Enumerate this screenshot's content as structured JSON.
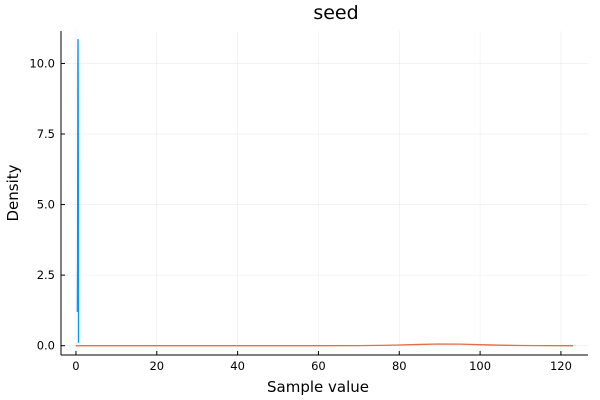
{
  "chart_data": {
    "type": "line",
    "title": "seed",
    "xlabel": "Sample value",
    "ylabel": "Density",
    "xlim": [
      -3.7,
      126.7
    ],
    "ylim": [
      -0.33,
      11.15
    ],
    "xticks": [
      0,
      20,
      40,
      60,
      80,
      100,
      120
    ],
    "xtick_labels": [
      "0",
      "20",
      "40",
      "60",
      "80",
      "100",
      "120"
    ],
    "yticks": [
      0.0,
      2.5,
      5.0,
      7.5,
      10.0
    ],
    "ytick_labels": [
      "0.0",
      "2.5",
      "5.0",
      "7.5",
      "10.0"
    ],
    "grid": true,
    "legend": "none",
    "series": [
      {
        "color": "#009AFA",
        "x": [
          0.35,
          0.4,
          0.42,
          0.45,
          0.47,
          0.5,
          0.52,
          0.55,
          0.58,
          0.6,
          0.62,
          0.63
        ],
        "y": [
          1.2,
          3.0,
          5.5,
          8.0,
          9.8,
          10.85,
          10.8,
          9.5,
          7.0,
          4.0,
          1.5,
          0.1
        ]
      },
      {
        "color": "#E26F46",
        "x": [
          0,
          20,
          40,
          60,
          70,
          75,
          80,
          85,
          90,
          95,
          100,
          105,
          110,
          115,
          120,
          123
        ],
        "y": [
          0.0,
          0.0,
          0.0,
          0.0,
          0.003,
          0.01,
          0.025,
          0.045,
          0.06,
          0.055,
          0.035,
          0.018,
          0.007,
          0.002,
          0.0,
          0.0
        ]
      }
    ]
  }
}
